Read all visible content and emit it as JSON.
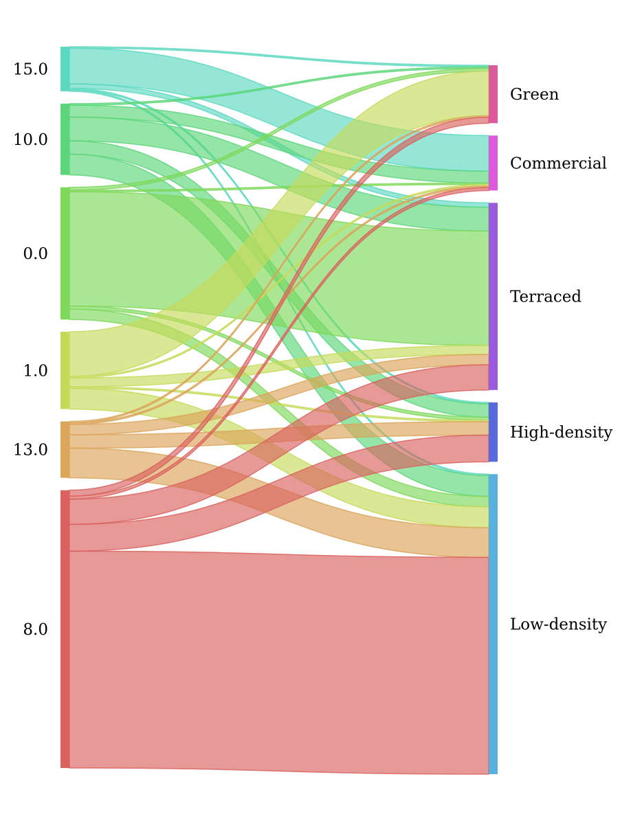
{
  "chart_data": {
    "type": "sankey",
    "title": "",
    "sources": [
      {
        "name": "15.0",
        "color": "#5cd8c0"
      },
      {
        "name": "10.0",
        "color": "#5cd67a"
      },
      {
        "name": "0.0",
        "color": "#7ed85a"
      },
      {
        "name": "1.0",
        "color": "#c6da5a"
      },
      {
        "name": "13.0",
        "color": "#dba55a"
      },
      {
        "name": "8.0",
        "color": "#d9625e"
      }
    ],
    "targets": [
      {
        "name": "Green",
        "color": "#dc5a9c"
      },
      {
        "name": "Commercial",
        "color": "#dc5adc"
      },
      {
        "name": "Terraced",
        "color": "#9a5adc"
      },
      {
        "name": "High-density",
        "color": "#5a6adc"
      },
      {
        "name": "Low-density",
        "color": "#5ab0dc"
      }
    ],
    "links": [
      {
        "source": "15.0",
        "target": "Green",
        "value": 1
      },
      {
        "source": "15.0",
        "target": "Commercial",
        "value": 24
      },
      {
        "source": "15.0",
        "target": "Terraced",
        "value": 3
      },
      {
        "source": "15.0",
        "target": "High-density",
        "value": 1
      },
      {
        "source": "15.0",
        "target": "Low-density",
        "value": 1
      },
      {
        "source": "10.0",
        "target": "Green",
        "value": 1
      },
      {
        "source": "10.0",
        "target": "Commercial",
        "value": 8
      },
      {
        "source": "10.0",
        "target": "Terraced",
        "value": 16
      },
      {
        "source": "10.0",
        "target": "High-density",
        "value": 9
      },
      {
        "source": "10.0",
        "target": "Low-density",
        "value": 14
      },
      {
        "source": "0.0",
        "target": "Green",
        "value": 2
      },
      {
        "source": "0.0",
        "target": "Commercial",
        "value": 1
      },
      {
        "source": "0.0",
        "target": "Terraced",
        "value": 77
      },
      {
        "source": "0.0",
        "target": "High-density",
        "value": 2
      },
      {
        "source": "0.0",
        "target": "Low-density",
        "value": 7
      },
      {
        "source": "1.0",
        "target": "Green",
        "value": 30
      },
      {
        "source": "1.0",
        "target": "Commercial",
        "value": 1
      },
      {
        "source": "1.0",
        "target": "Terraced",
        "value": 6
      },
      {
        "source": "1.0",
        "target": "High-density",
        "value": 1
      },
      {
        "source": "1.0",
        "target": "Low-density",
        "value": 14
      },
      {
        "source": "13.0",
        "target": "Green",
        "value": 1
      },
      {
        "source": "13.0",
        "target": "Commercial",
        "value": 1
      },
      {
        "source": "13.0",
        "target": "Terraced",
        "value": 7
      },
      {
        "source": "13.0",
        "target": "High-density",
        "value": 9
      },
      {
        "source": "13.0",
        "target": "Low-density",
        "value": 20
      },
      {
        "source": "8.0",
        "target": "Green",
        "value": 4
      },
      {
        "source": "8.0",
        "target": "Commercial",
        "value": 2
      },
      {
        "source": "8.0",
        "target": "Terraced",
        "value": 17
      },
      {
        "source": "8.0",
        "target": "High-density",
        "value": 18
      },
      {
        "source": "8.0",
        "target": "Low-density",
        "value": 146
      }
    ]
  }
}
